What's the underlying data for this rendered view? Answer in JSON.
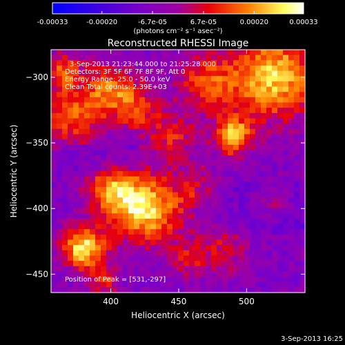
{
  "chart_data": {
    "type": "heatmap",
    "title": "Reconstructed RHESSI Image",
    "xlabel": "Heliocentric X (arcsec)",
    "ylabel": "Heliocentric Y (arcsec)",
    "xlim": [
      356,
      543
    ],
    "ylim": [
      -464,
      -279
    ],
    "x_ticks": [
      400,
      450,
      500
    ],
    "y_ticks": [
      -300,
      -350,
      -400,
      -450
    ],
    "colorbar": {
      "ticks": [
        {
          "value": -0.00033,
          "label": "-0.00033"
        },
        {
          "value": -0.0002,
          "label": "-0.00020"
        },
        {
          "value": -6.7e-05,
          "label": "-6.7e-05"
        },
        {
          "value": 6.7e-05,
          "label": "6.7e-05"
        },
        {
          "value": 0.0002,
          "label": "0.00020"
        },
        {
          "value": 0.00033,
          "label": "0.00033"
        }
      ],
      "range": [
        -0.00033,
        0.00033
      ]
    },
    "units_label": "(photons cm⁻² s⁻¹ asec⁻²)",
    "annotations": [
      "3-Sep-2013 21:23:44.000 to 21:25:28.000",
      "Detectors: 3F 5F 6F 7F 8F 9F, Att 0",
      "Energy Range: 25.0 - 50.0 keV",
      "Clean    Total counts: 2.39E+03"
    ],
    "peak_label": "Position of Peak = [531,-297]",
    "peak": [
      531,
      -297
    ],
    "grid": false
  },
  "timestamp": "3-Sep-2013 16:25",
  "colors": {
    "colormap": [
      "#0000ff",
      "#7a00c8",
      "#e8000a",
      "#ff8000",
      "#ffff60",
      "#ffffff"
    ],
    "background": "#000000",
    "foreground": "#ffffff"
  }
}
